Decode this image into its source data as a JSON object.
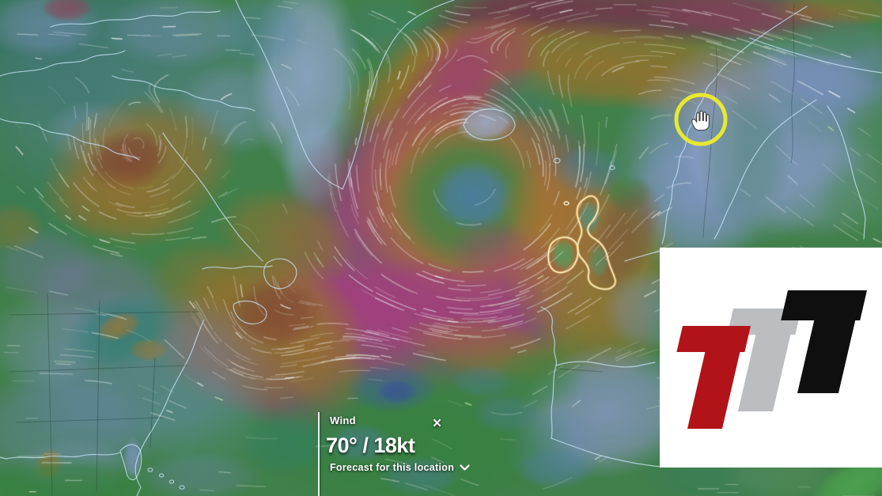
{
  "picker": {
    "layer_label": "Wind",
    "reading": "70° / 18kt",
    "close_label": "×",
    "forecast_label": "Forecast for this location"
  },
  "cursor": {
    "style": "open-hand",
    "ring_color": "#e7e832"
  },
  "watermark": {
    "letters": [
      "T",
      "T",
      "T"
    ],
    "background": "#ffffff",
    "colors": {
      "t1": "#b11319",
      "t2": "#bbbdc0",
      "t3": "#0f0f0f"
    }
  },
  "map": {
    "palette": {
      "calm_blue": "#4c7da2",
      "light_slate": "#7e95c2",
      "moderate_green": "#41804a",
      "strong_orange": "#9d722e",
      "storm_magenta": "#a23f7e",
      "extreme_maroon": "#71394a"
    }
  }
}
